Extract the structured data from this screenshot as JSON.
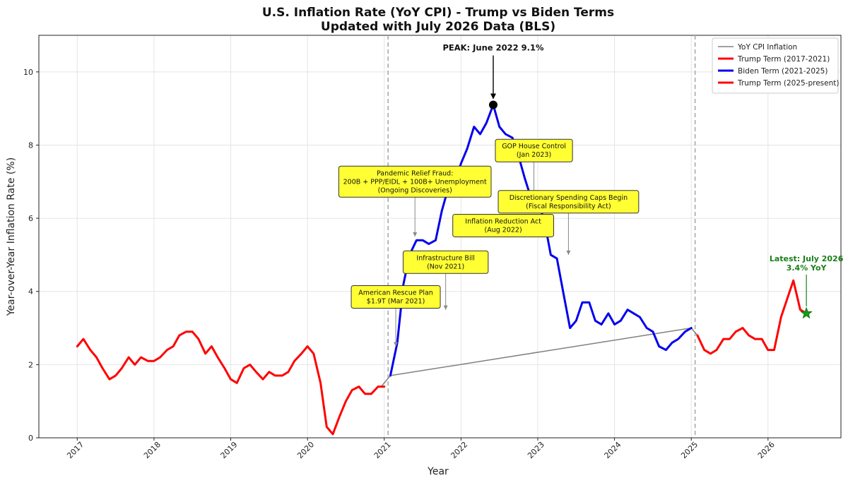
{
  "chart_data": {
    "type": "line",
    "title": "U.S. Inflation Rate (YoY CPI) - Trump vs Biden Terms",
    "subtitle": "Updated with July 2026 Data (BLS)",
    "xlabel": "Year",
    "ylabel": "Year-over-Year Inflation Rate (%)",
    "xlim": [
      2016.5,
      2026.95
    ],
    "ylim": [
      0,
      11
    ],
    "x_ticks": [
      2017,
      2018,
      2019,
      2020,
      2021,
      2022,
      2023,
      2024,
      2025,
      2026
    ],
    "y_ticks": [
      0,
      2,
      4,
      6,
      8,
      10
    ],
    "grid": true,
    "legend_position": "top-right",
    "series": [
      {
        "name": "YoY CPI Inflation",
        "color": "#808080",
        "width": 1.5,
        "x": [
          2020.96,
          2021.04,
          2021.08,
          2025.0,
          2025.08
        ],
        "y": [
          1.4,
          1.6,
          1.7,
          3.0,
          2.8
        ]
      },
      {
        "name": "Trump Term (2017-2021)",
        "color": "#ff0000",
        "width": 3,
        "x": [
          2017.0,
          2017.08,
          2017.17,
          2017.25,
          2017.33,
          2017.42,
          2017.5,
          2017.58,
          2017.67,
          2017.75,
          2017.83,
          2017.92,
          2018.0,
          2018.08,
          2018.17,
          2018.25,
          2018.33,
          2018.42,
          2018.5,
          2018.58,
          2018.67,
          2018.75,
          2018.83,
          2018.92,
          2019.0,
          2019.08,
          2019.17,
          2019.25,
          2019.33,
          2019.42,
          2019.5,
          2019.58,
          2019.67,
          2019.75,
          2019.83,
          2019.92,
          2020.0,
          2020.08,
          2020.17,
          2020.25,
          2020.33,
          2020.42,
          2020.5,
          2020.58,
          2020.67,
          2020.75,
          2020.83,
          2020.92,
          2021.0
        ],
        "y": [
          2.5,
          2.7,
          2.4,
          2.2,
          1.9,
          1.6,
          1.7,
          1.9,
          2.2,
          2.0,
          2.2,
          2.1,
          2.1,
          2.2,
          2.4,
          2.5,
          2.8,
          2.9,
          2.9,
          2.7,
          2.3,
          2.5,
          2.2,
          1.9,
          1.6,
          1.5,
          1.9,
          2.0,
          1.8,
          1.6,
          1.8,
          1.7,
          1.7,
          1.8,
          2.1,
          2.3,
          2.5,
          2.3,
          1.5,
          0.3,
          0.1,
          0.6,
          1.0,
          1.3,
          1.4,
          1.2,
          1.2,
          1.4,
          1.4
        ]
      },
      {
        "name": "Biden Term (2021-2025)",
        "color": "#0000ee",
        "width": 3,
        "x": [
          2021.08,
          2021.17,
          2021.25,
          2021.33,
          2021.42,
          2021.5,
          2021.58,
          2021.67,
          2021.75,
          2021.83,
          2021.92,
          2022.0,
          2022.08,
          2022.17,
          2022.25,
          2022.33,
          2022.42,
          2022.5,
          2022.58,
          2022.67,
          2022.75,
          2022.83,
          2022.92,
          2023.0,
          2023.08,
          2023.17,
          2023.25,
          2023.33,
          2023.42,
          2023.5,
          2023.58,
          2023.67,
          2023.75,
          2023.83,
          2023.92,
          2024.0,
          2024.08,
          2024.17,
          2024.25,
          2024.33,
          2024.42,
          2024.5,
          2024.58,
          2024.67,
          2024.75,
          2024.83,
          2024.92,
          2025.0
        ],
        "y": [
          1.7,
          2.6,
          4.2,
          5.0,
          5.4,
          5.4,
          5.3,
          5.4,
          6.2,
          6.8,
          7.0,
          7.5,
          7.9,
          8.5,
          8.3,
          8.6,
          9.1,
          8.5,
          8.3,
          8.2,
          7.7,
          7.1,
          6.5,
          6.4,
          6.0,
          5.0,
          4.9,
          4.0,
          3.0,
          3.2,
          3.7,
          3.7,
          3.2,
          3.1,
          3.4,
          3.1,
          3.2,
          3.5,
          3.4,
          3.3,
          3.0,
          2.9,
          2.5,
          2.4,
          2.6,
          2.7,
          2.9,
          3.0
        ]
      },
      {
        "name": "Trump Term (2025-present)",
        "color": "#ff0000",
        "width": 3,
        "x": [
          2025.08,
          2025.17,
          2025.25,
          2025.33,
          2025.42,
          2025.5,
          2025.58,
          2025.67,
          2025.75,
          2025.83,
          2025.92,
          2026.0,
          2026.08,
          2026.17,
          2026.25,
          2026.33,
          2026.42,
          2026.5
        ],
        "y": [
          2.8,
          2.4,
          2.3,
          2.4,
          2.7,
          2.7,
          2.9,
          3.0,
          2.8,
          2.7,
          2.7,
          2.4,
          2.4,
          3.3,
          3.8,
          4.3,
          3.5,
          3.4
        ]
      }
    ],
    "vertical_lines": [
      2021.05,
      2025.05
    ],
    "peak": {
      "label": "PEAK: June 2022 9.1%",
      "x": 2022.42,
      "y": 9.1
    },
    "latest": {
      "label_line1": "Latest: July 2026",
      "label_line2": "3.4% YoY",
      "x": 2026.5,
      "y": 3.4
    },
    "annotations": [
      {
        "lines": [
          "Pandemic Relief Fraud:",
          "200B + PPP/EIDL + 100B+ Unemployment",
          "(Ongoing Discoveries)"
        ],
        "x": 2021.4,
        "y": 7.0,
        "arrow_to_y": 5.5
      },
      {
        "lines": [
          "GOP House Control",
          "(Jan 2023)"
        ],
        "x": 2022.95,
        "y": 7.85,
        "arrow_to_y": 6.3
      },
      {
        "lines": [
          "Discretionary Spending Caps Begin",
          "(Fiscal Responsibility Act)"
        ],
        "x": 2023.4,
        "y": 6.45,
        "arrow_to_y": 5.0
      },
      {
        "lines": [
          "Inflation Reduction Act",
          "(Aug 2022)"
        ],
        "x": 2022.55,
        "y": 5.8,
        "arrow_to_y": null
      },
      {
        "lines": [
          "Infrastructure Bill",
          "(Nov 2021)"
        ],
        "x": 2021.8,
        "y": 4.8,
        "arrow_to_y": 3.5
      },
      {
        "lines": [
          "American Rescue Plan",
          "$1.9T (Mar 2021)"
        ],
        "x": 2021.15,
        "y": 3.85,
        "arrow_to_y": 2.5
      }
    ]
  }
}
